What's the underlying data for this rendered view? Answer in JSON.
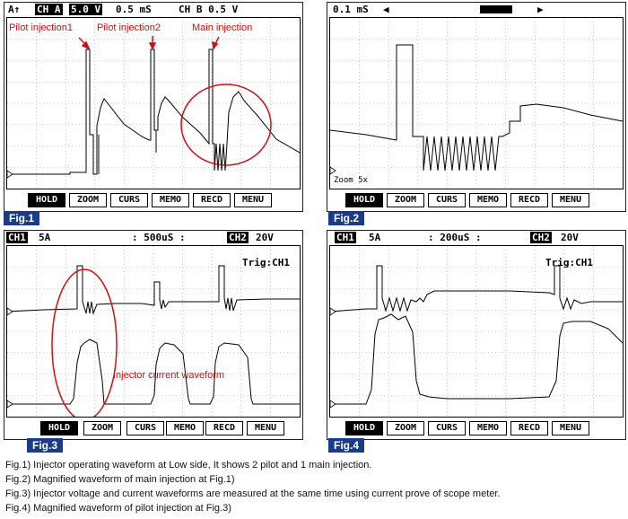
{
  "softkeys": [
    "HOLD",
    "ZOOM",
    "CURS",
    "MEMO",
    "RECD",
    "MENU"
  ],
  "fig1": {
    "header": {
      "trig": "A↑",
      "ch_a": "CH A",
      "volt_a": "5.0 V",
      "time": "0.5 mS",
      "ch_b": "CH B 0.5 V"
    },
    "label": "Fig.1",
    "annotations": {
      "pilot1": "Pilot injection1",
      "pilot2": "Pilot injection2",
      "main": "Main injection"
    }
  },
  "fig2": {
    "header": {
      "time": "0.1 mS"
    },
    "zoom": "Zoom 5x",
    "label": "Fig.2"
  },
  "fig3": {
    "header": {
      "ch1": "CH1",
      "ch1_scale": "5A",
      "time": ": 500uS :",
      "ch2": "CH2",
      "ch2_scale": "20V"
    },
    "trig": "Trig:CH1",
    "annotation": "Injector current waveform",
    "label": "Fig.3"
  },
  "fig4": {
    "header": {
      "ch1": "CH1",
      "ch1_scale": "5A",
      "time": ": 200uS :",
      "ch2": "CH2",
      "ch2_scale": "20V"
    },
    "trig": "Trig:CH1",
    "label": "Fig.4"
  },
  "captions": [
    "Fig.1) Injector operating waveform at Low side, It shows 2 pilot and 1 main injection.",
    "Fig.2) Magnified waveform of main injection at Fig.1)",
    "Fig.3) Injector voltage and current waveforms are measured at the same time using current prove of scope meter.",
    "Fig.4) Magnified waveform of pilot injection at Fig.3)"
  ]
}
